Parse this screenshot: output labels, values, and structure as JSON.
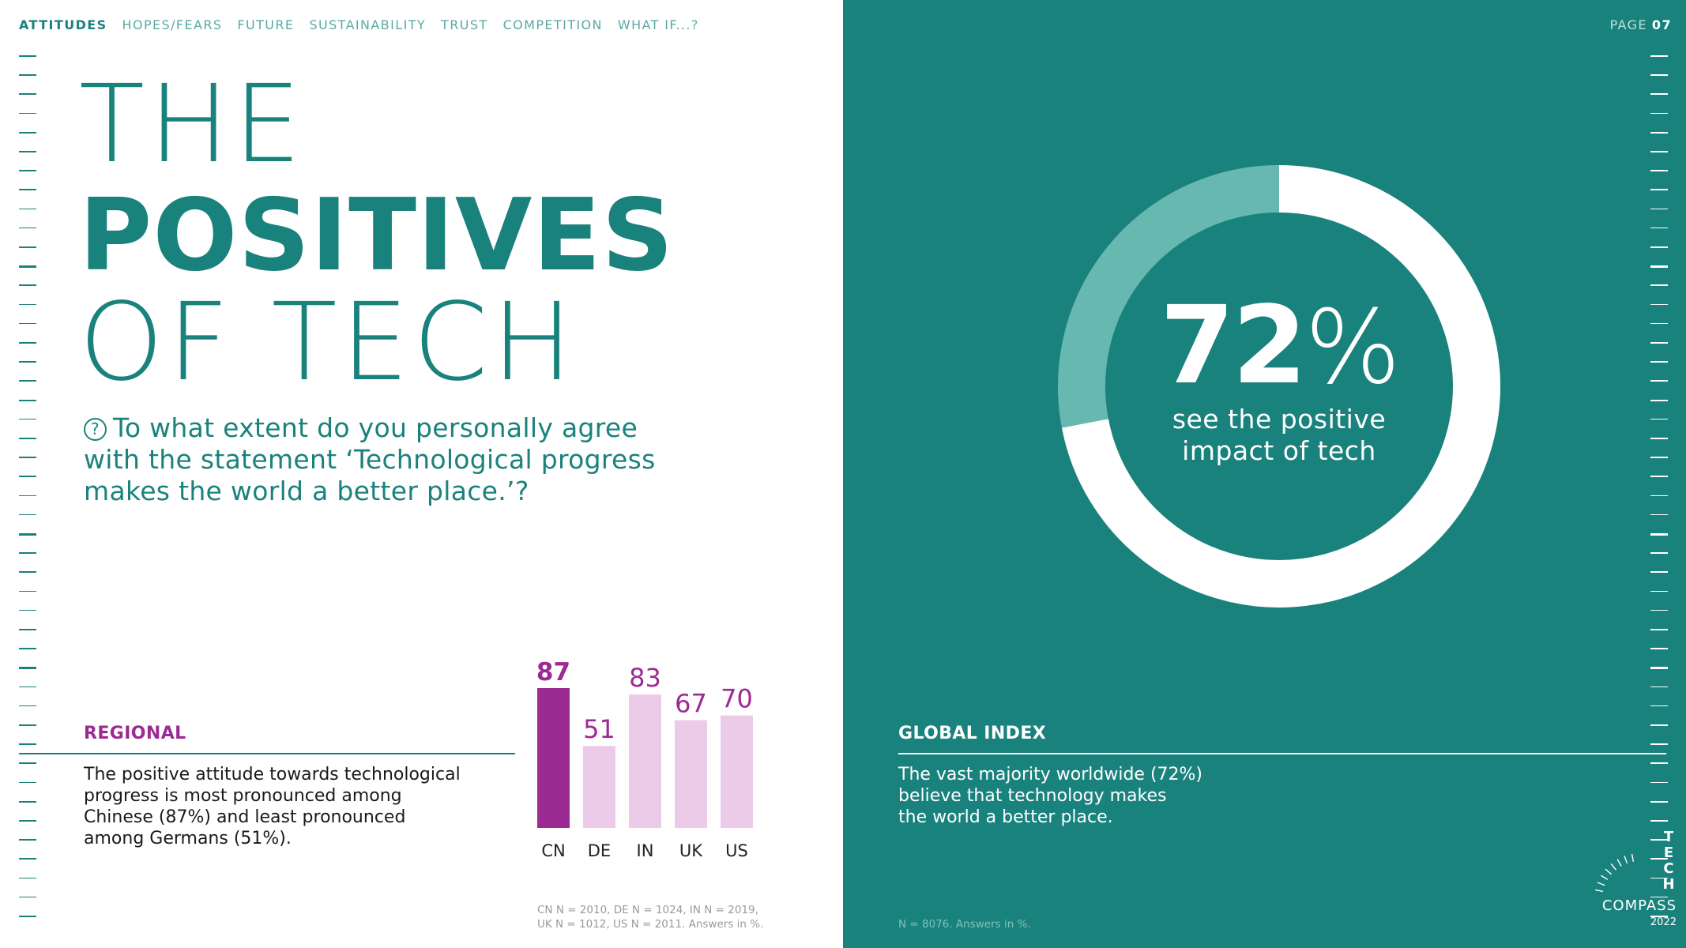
{
  "nav": {
    "items": [
      "ATTITUDES",
      "HOPES/FEARS",
      "FUTURE",
      "SUSTAINABILITY",
      "TRUST",
      "COMPETITION",
      "WHAT IF...?"
    ],
    "active_index": 0
  },
  "title": {
    "line1": "THE",
    "line2": "POSITIVES",
    "line3": "OF TECH"
  },
  "question": {
    "icon": "question-circle-icon",
    "text": "To what extent do you personally agree with the statement ‘Technological progress makes the world a better place.’?"
  },
  "regional": {
    "heading": "REGIONAL",
    "text": "The positive attitude towards technological\nprogress is most pronounced among\nChinese (87%) and least pronounced\namong Germans (51%).",
    "footnote": "CN N = 2010, DE N = 1024, IN N = 2019,\nUK N = 1012, US N = 2011. Answers in %."
  },
  "chart_data": [
    {
      "type": "bar",
      "categories": [
        "CN",
        "DE",
        "IN",
        "UK",
        "US"
      ],
      "values": [
        87,
        51,
        83,
        67,
        70
      ],
      "ylim": [
        0,
        100
      ],
      "highlight_category": "CN",
      "colors": {
        "highlight": "#9c2a93",
        "normal": "#ebcbe7",
        "label": "#9c2a93",
        "tick": "#222222"
      }
    },
    {
      "type": "pie",
      "categories": [
        "see the positive impact of tech",
        "other"
      ],
      "values": [
        72,
        28
      ],
      "colors": {
        "primary": "#ffffff",
        "secondary": "#66b8b1"
      }
    }
  ],
  "global": {
    "big_number": "72",
    "big_unit": "%",
    "caption": "see the positive\nimpact of tech",
    "heading": "GLOBAL INDEX",
    "text": "The vast majority worldwide (72%)\nbelieve that technology makes\nthe world a better place.",
    "footnote": "N = 8076. Answers in %."
  },
  "page": {
    "label": "PAGE",
    "number": "07"
  },
  "logo": {
    "letters": [
      "T",
      "E",
      "C",
      "H"
    ],
    "word": "COMPASS",
    "year": "2022"
  },
  "colors": {
    "teal": "#1a827d",
    "purple": "#9c2a93",
    "light_teal": "#66b8b1"
  }
}
